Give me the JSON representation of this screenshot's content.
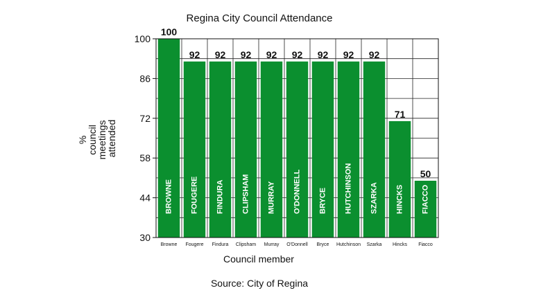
{
  "chart_data": {
    "type": "bar",
    "title": "Regina City Council Attendance",
    "xlabel": "Council member",
    "ylabel": [
      "%",
      "council",
      "meetings",
      "attended"
    ],
    "ylim": [
      30,
      100
    ],
    "yticks": [
      "100",
      "86",
      "72",
      "58",
      "44",
      "30"
    ],
    "grid": true,
    "categories": [
      "Browne",
      "Fougere",
      "Findura",
      "Clipsham",
      "Murray",
      "O'Donnell",
      "Bryce",
      "Hutchinson",
      "Szarka",
      "Hincks",
      "Fiacco"
    ],
    "bar_labels": [
      "BROWNE",
      "FOUGERE",
      "FINDURA",
      "CLIPSHAM",
      "MURRAY",
      "O'DONNELL",
      "BRYCE",
      "HUTCHINSON",
      "SZARKA",
      "HINCKS",
      "FIACCO"
    ],
    "values": [
      100,
      92,
      92,
      92,
      92,
      92,
      92,
      92,
      92,
      71,
      50
    ],
    "bar_color": "#0b8f2f",
    "source": "Source: City of Regina"
  }
}
